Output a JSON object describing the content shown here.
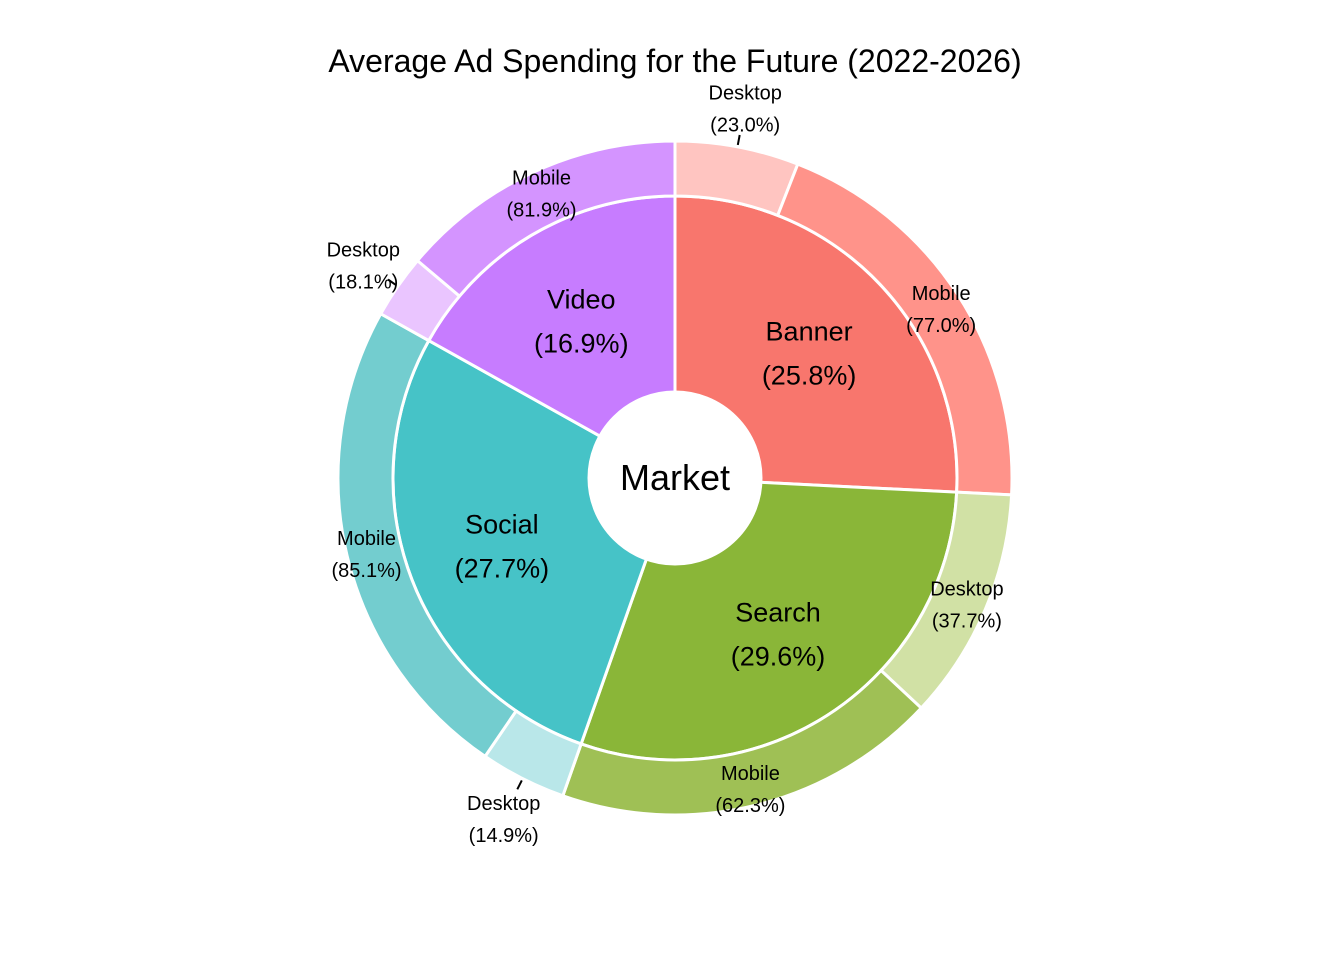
{
  "chart_data": {
    "type": "pie",
    "subtype": "sunburst",
    "title": "Average Ad Spending for the Future (2022-2026)",
    "center_label": "Market",
    "categories": [
      {
        "name": "Banner",
        "percent_label": "(25.8%)",
        "share": 25.8,
        "color": "#F8766D",
        "children": [
          {
            "name": "Desktop",
            "percent_label": "(23.0%)",
            "share": 23.0,
            "color": "#FFC5C1"
          },
          {
            "name": "Mobile",
            "percent_label": "(77.0%)",
            "share": 77.0,
            "color": "#FF938A"
          }
        ]
      },
      {
        "name": "Search",
        "percent_label": "(29.6%)",
        "share": 29.6,
        "color": "#8AB638",
        "children": [
          {
            "name": "Desktop",
            "percent_label": "(37.7%)",
            "share": 37.7,
            "color": "#D1E1A5"
          },
          {
            "name": "Mobile",
            "percent_label": "(62.3%)",
            "share": 62.3,
            "color": "#9FC055"
          }
        ]
      },
      {
        "name": "Social",
        "percent_label": "(27.7%)",
        "share": 27.7,
        "color": "#46C3C7",
        "children": [
          {
            "name": "Desktop",
            "percent_label": "(14.9%)",
            "share": 14.9,
            "color": "#B9E7E9"
          },
          {
            "name": "Mobile",
            "percent_label": "(85.1%)",
            "share": 85.1,
            "color": "#73CDCF"
          }
        ]
      },
      {
        "name": "Video",
        "percent_label": "(16.9%)",
        "share": 16.9,
        "color": "#C77CFF",
        "children": [
          {
            "name": "Desktop",
            "percent_label": "(18.1%)",
            "share": 18.1,
            "color": "#EAC5FF"
          },
          {
            "name": "Mobile",
            "percent_label": "(81.9%)",
            "share": 81.9,
            "color": "#D494FF"
          }
        ]
      }
    ],
    "legend": "none"
  }
}
